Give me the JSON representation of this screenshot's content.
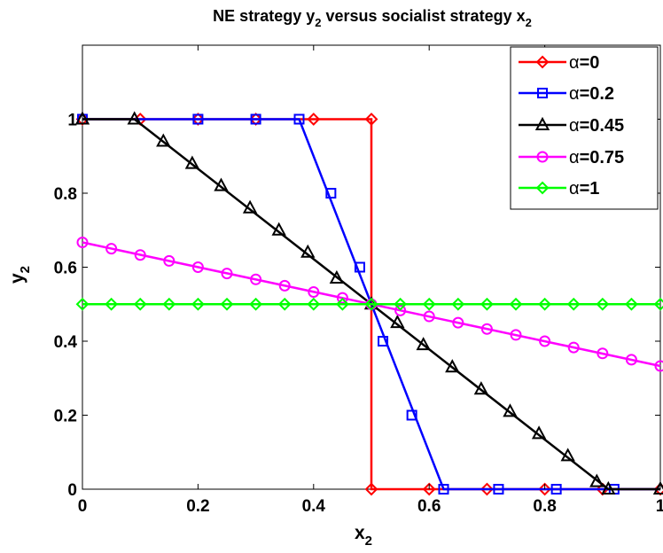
{
  "chart_data": {
    "type": "line",
    "title": "NE strategy y",
    "title_sub": "2",
    "title_mid": " versus socialist strategy x",
    "title_sub2": "2",
    "xlabel": "x",
    "xlabel_sub": "2",
    "ylabel": "y",
    "ylabel_sub": "2",
    "xlim": [
      0,
      1
    ],
    "ylim": [
      0,
      1.2
    ],
    "xticks": [
      0,
      0.2,
      0.4,
      0.6,
      0.8,
      1
    ],
    "yticks": [
      0,
      0.2,
      0.4,
      0.6,
      0.8,
      1
    ],
    "xtick_labels": [
      "0",
      "0.2",
      "0.4",
      "0.6",
      "0.8",
      "1"
    ],
    "ytick_labels": [
      "0",
      "0.2",
      "0.4",
      "0.6",
      "0.8",
      "1"
    ],
    "grid": false,
    "legend_position": "top-right",
    "series": [
      {
        "name": "α=0",
        "alpha_symbol": "α",
        "alpha_value": "=0",
        "color": "#ff0000",
        "marker": "diamond",
        "x": [
          0,
          0.5,
          0.5,
          1
        ],
        "y": [
          1,
          1,
          0,
          0
        ],
        "marker_x": [
          0,
          0.1,
          0.2,
          0.3,
          0.4,
          0.5,
          0.5,
          0.6,
          0.7,
          0.8,
          0.9,
          1
        ],
        "marker_y": [
          1,
          1,
          1,
          1,
          1,
          1,
          0,
          0,
          0,
          0,
          0,
          0
        ]
      },
      {
        "name": "α=0.2",
        "alpha_symbol": "α",
        "alpha_value": "=0.2",
        "color": "#0000ff",
        "marker": "square",
        "x": [
          0,
          0.375,
          0.625,
          1
        ],
        "y": [
          1,
          1,
          0,
          0
        ],
        "marker_x": [
          0,
          0.2,
          0.3,
          0.375,
          0.43,
          0.48,
          0.52,
          0.57,
          0.625,
          0.72,
          0.82,
          0.92
        ],
        "marker_y": [
          1,
          1,
          1,
          1,
          0.8,
          0.6,
          0.4,
          0.2,
          0,
          0,
          0,
          0
        ]
      },
      {
        "name": "α=0.45",
        "alpha_symbol": "α",
        "alpha_value": "=0.45",
        "color": "#000000",
        "marker": "triangle",
        "x": [
          0,
          0.09,
          0.91,
          1
        ],
        "y": [
          1,
          1,
          0,
          0
        ],
        "marker_x": [
          0,
          0.09,
          0.14,
          0.19,
          0.24,
          0.29,
          0.34,
          0.39,
          0.44,
          0.5,
          0.545,
          0.59,
          0.64,
          0.69,
          0.74,
          0.79,
          0.84,
          0.89,
          0.91,
          1
        ],
        "marker_y": [
          1,
          1,
          0.94,
          0.88,
          0.82,
          0.76,
          0.7,
          0.64,
          0.57,
          0.5,
          0.45,
          0.39,
          0.33,
          0.27,
          0.21,
          0.15,
          0.09,
          0.02,
          0,
          0
        ]
      },
      {
        "name": "α=0.75",
        "alpha_symbol": "α",
        "alpha_value": "=0.75",
        "color": "#ff00ff",
        "marker": "circle",
        "x": [
          0,
          1
        ],
        "y": [
          0.667,
          0.333
        ],
        "marker_x": [
          0,
          0.05,
          0.1,
          0.15,
          0.2,
          0.25,
          0.3,
          0.35,
          0.4,
          0.45,
          0.5,
          0.55,
          0.6,
          0.65,
          0.7,
          0.75,
          0.8,
          0.85,
          0.9,
          0.95,
          1
        ],
        "marker_y": [
          0.667,
          0.65,
          0.633,
          0.617,
          0.6,
          0.583,
          0.567,
          0.55,
          0.533,
          0.517,
          0.5,
          0.483,
          0.467,
          0.45,
          0.433,
          0.417,
          0.4,
          0.383,
          0.367,
          0.35,
          0.333
        ]
      },
      {
        "name": "α=1",
        "alpha_symbol": "α",
        "alpha_value": "=1",
        "color": "#00ff00",
        "marker": "diamond",
        "x": [
          0,
          1
        ],
        "y": [
          0.5,
          0.5
        ],
        "marker_x": [
          0,
          0.05,
          0.1,
          0.15,
          0.2,
          0.25,
          0.3,
          0.35,
          0.4,
          0.45,
          0.5,
          0.55,
          0.6,
          0.65,
          0.7,
          0.75,
          0.8,
          0.85,
          0.9,
          0.95,
          1
        ],
        "marker_y": [
          0.5,
          0.5,
          0.5,
          0.5,
          0.5,
          0.5,
          0.5,
          0.5,
          0.5,
          0.5,
          0.5,
          0.5,
          0.5,
          0.5,
          0.5,
          0.5,
          0.5,
          0.5,
          0.5,
          0.5,
          0.5
        ]
      }
    ]
  }
}
